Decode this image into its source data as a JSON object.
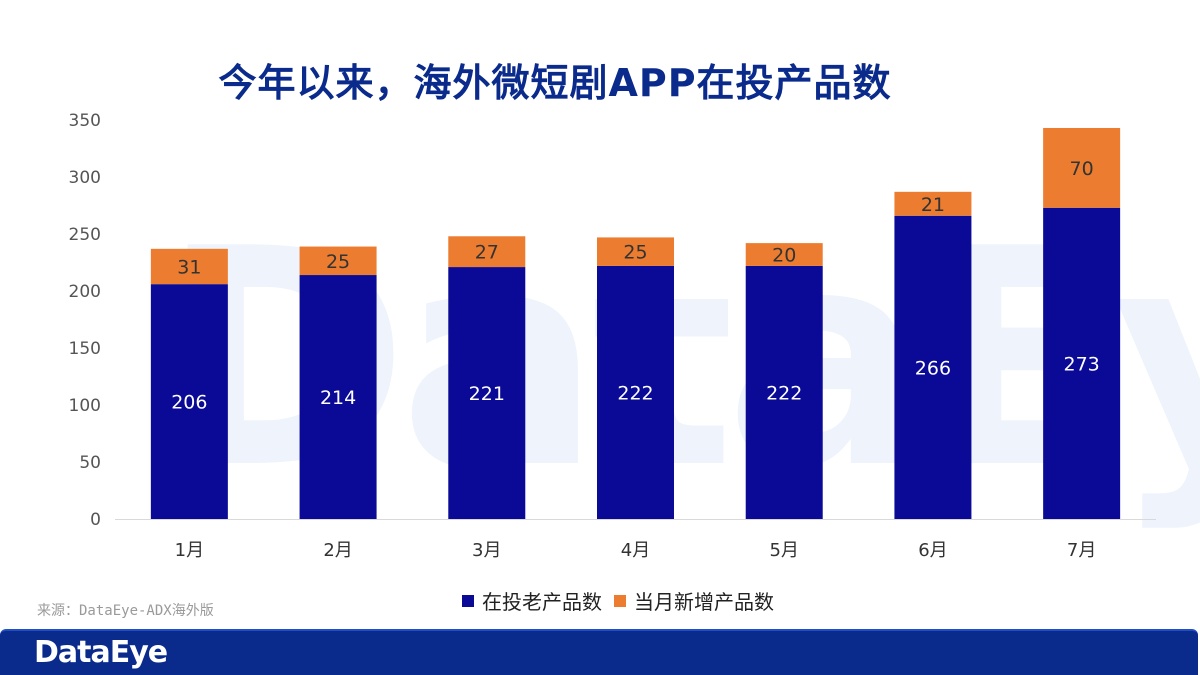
{
  "header": {
    "title": "今年以来，海外微短剧APP在投产品数"
  },
  "watermark": "DataEye",
  "colors": {
    "old": "#0a0a96",
    "new": "#ec7c30",
    "title": "#0a2a8c",
    "footer": "#0a2a8c"
  },
  "chart_data": {
    "type": "bar",
    "stacked": true,
    "title": "今年以来，海外微短剧APP在投产品数",
    "categories": [
      "1月",
      "2月",
      "3月",
      "4月",
      "5月",
      "6月",
      "7月"
    ],
    "series": [
      {
        "name": "在投老产品数",
        "values": [
          206,
          214,
          221,
          222,
          222,
          266,
          273
        ]
      },
      {
        "name": "当月新增产品数",
        "values": [
          31,
          25,
          27,
          25,
          20,
          21,
          70
        ]
      }
    ],
    "ylim": [
      0,
      350
    ],
    "yticks": [
      0,
      50,
      100,
      150,
      200,
      250,
      300,
      350
    ],
    "grid": false,
    "legend": "bottom"
  },
  "source": "来源：DataEye-ADX海外版",
  "footer": {
    "logo": "DataEye"
  }
}
